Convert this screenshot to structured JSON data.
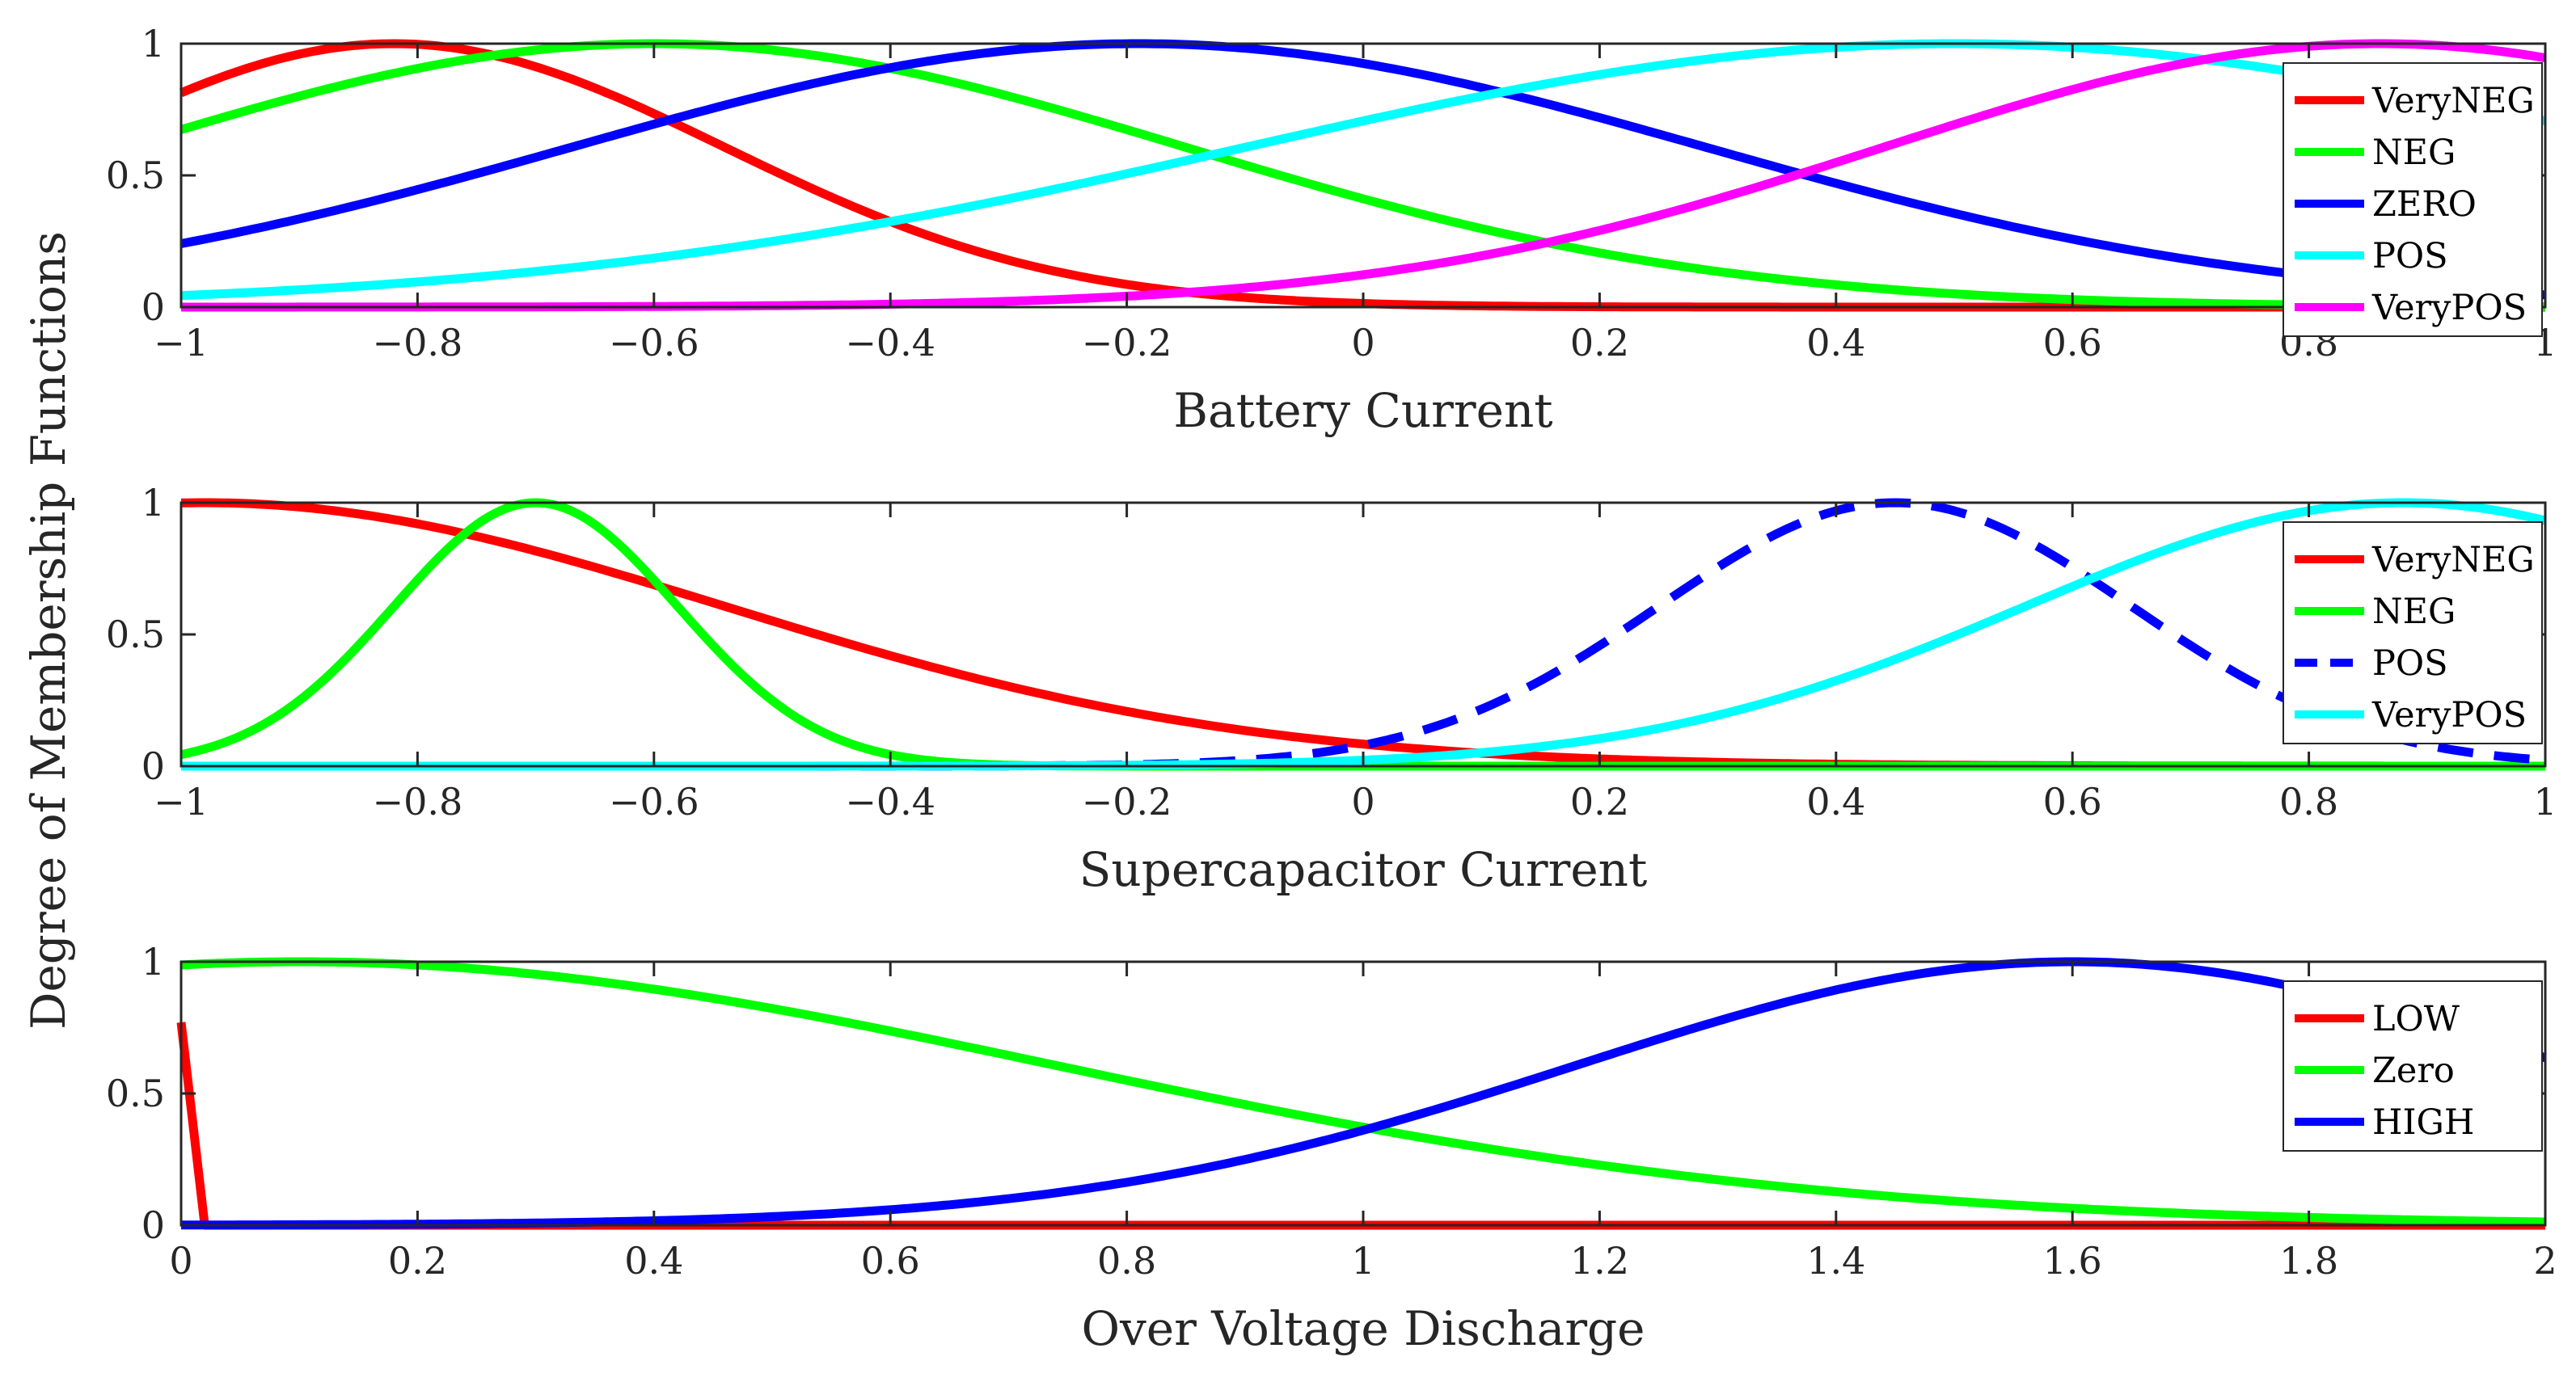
{
  "shared_ylabel": "Degree of Membership Functions",
  "chart_data": [
    {
      "type": "line",
      "xlabel": "Battery Current",
      "xlim": [
        -1,
        1
      ],
      "ylim": [
        0,
        1
      ],
      "xticks": [
        "−1",
        "−0.8",
        "−0.6",
        "−0.4",
        "−0.2",
        "0",
        "0.2",
        "0.4",
        "0.6",
        "0.8",
        "1"
      ],
      "xtick_values": [
        -1,
        -0.8,
        -0.6,
        -0.4,
        -0.2,
        0,
        0.2,
        0.4,
        0.6,
        0.8,
        1
      ],
      "yticks": [
        "0",
        "0.5",
        "1"
      ],
      "ytick_values": [
        0,
        0.5,
        1
      ],
      "legend_position": "top-right",
      "series": [
        {
          "name": "VeryNEG",
          "color": "#ff0000",
          "dash": false,
          "shape": "gaussian",
          "center": -0.82,
          "sigma": 0.28
        },
        {
          "name": "NEG",
          "color": "#00ff00",
          "dash": false,
          "shape": "gaussian",
          "center": -0.6,
          "sigma": 0.45
        },
        {
          "name": "ZERO",
          "color": "#0000ff",
          "dash": false,
          "shape": "gaussian",
          "center": -0.19,
          "sigma": 0.48
        },
        {
          "name": "POS",
          "color": "#00ffff",
          "dash": false,
          "shape": "gaussian",
          "center": 0.5,
          "sigma": 0.6
        },
        {
          "name": "VeryPOS",
          "color": "#ff00ff",
          "dash": false,
          "shape": "gaussian",
          "center": 0.86,
          "sigma": 0.42
        }
      ]
    },
    {
      "type": "line",
      "xlabel": "Supercapacitor Current",
      "xlim": [
        -1,
        1
      ],
      "ylim": [
        0,
        1
      ],
      "xticks": [
        "−1",
        "−0.8",
        "−0.6",
        "−0.4",
        "−0.2",
        "0",
        "0.2",
        "0.4",
        "0.6",
        "0.8",
        "1"
      ],
      "xtick_values": [
        -1,
        -0.8,
        -0.6,
        -0.4,
        -0.2,
        0,
        0.2,
        0.4,
        0.6,
        0.8,
        1
      ],
      "yticks": [
        "0",
        "0.5",
        "1"
      ],
      "ytick_values": [
        0,
        0.5,
        1
      ],
      "legend_position": "top-right",
      "series": [
        {
          "name": "VeryNEG",
          "color": "#ff0000",
          "dash": false,
          "shape": "gaussian",
          "center": -0.98,
          "sigma": 0.44
        },
        {
          "name": "NEG",
          "color": "#00ff00",
          "dash": false,
          "shape": "gaussian",
          "center": -0.7,
          "sigma": 0.12
        },
        {
          "name": "POS",
          "color": "#0000ff",
          "dash": true,
          "shape": "gaussian",
          "center": 0.45,
          "sigma": 0.2
        },
        {
          "name": "VeryPOS",
          "color": "#00ffff",
          "dash": false,
          "shape": "gaussian",
          "center": 0.88,
          "sigma": 0.32
        }
      ]
    },
    {
      "type": "line",
      "xlabel": "Over Voltage Discharge",
      "xlim": [
        0,
        2
      ],
      "ylim": [
        0,
        1
      ],
      "xticks": [
        "0",
        "0.2",
        "0.4",
        "0.6",
        "0.8",
        "1",
        "1.2",
        "1.4",
        "1.6",
        "1.8",
        "2"
      ],
      "xtick_values": [
        0,
        0.2,
        0.4,
        0.6,
        0.8,
        1,
        1.2,
        1.4,
        1.6,
        1.8,
        2
      ],
      "yticks": [
        "0",
        "0.5",
        "1"
      ],
      "ytick_values": [
        0,
        0.5,
        1
      ],
      "legend_position": "top-right",
      "series": [
        {
          "name": "LOW",
          "color": "#ff0000",
          "dash": false,
          "shape": "segment",
          "x": [
            0,
            0.02,
            2
          ],
          "y": [
            0.77,
            0,
            0
          ]
        },
        {
          "name": "Zero",
          "color": "#00ff00",
          "dash": false,
          "shape": "gaussian",
          "center": 0.1,
          "sigma": 0.64
        },
        {
          "name": "HIGH",
          "color": "#0000ff",
          "dash": false,
          "shape": "gaussian",
          "center": 1.6,
          "sigma": 0.42
        }
      ]
    }
  ]
}
